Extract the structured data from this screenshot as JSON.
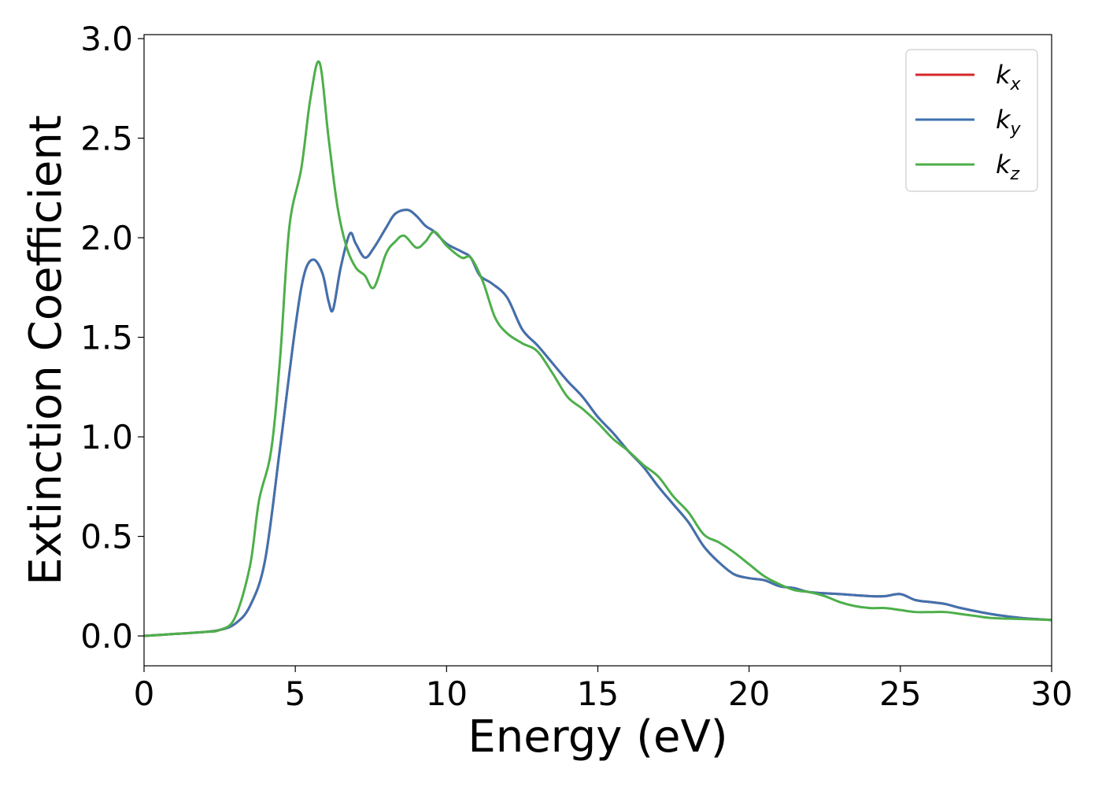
{
  "chart_data": {
    "type": "line",
    "xlabel": "Energy (eV)",
    "ylabel": "Extinction Coefficient",
    "xlim": [
      0,
      30
    ],
    "ylim": [
      -0.15,
      3.02
    ],
    "xticks": [
      0,
      5,
      10,
      15,
      20,
      25,
      30
    ],
    "xtick_labels": [
      "0",
      "5",
      "10",
      "15",
      "20",
      "25",
      "30"
    ],
    "yticks": [
      0.0,
      0.5,
      1.0,
      1.5,
      2.0,
      2.5,
      3.0
    ],
    "ytick_labels": [
      "0.0",
      "0.5",
      "1.0",
      "1.5",
      "2.0",
      "2.5",
      "3.0"
    ],
    "grid": false,
    "legend_position": "top-right",
    "series": [
      {
        "name": "k_x",
        "legend_base": "k",
        "legend_sub": "x",
        "color": "#d62728",
        "points": [
          [
            0,
            0
          ],
          [
            1,
            0.01
          ],
          [
            2,
            0.02
          ],
          [
            2.5,
            0.03
          ],
          [
            3,
            0.06
          ],
          [
            3.5,
            0.15
          ],
          [
            4,
            0.38
          ],
          [
            4.5,
            0.95
          ],
          [
            5,
            1.55
          ],
          [
            5.3,
            1.82
          ],
          [
            5.6,
            1.89
          ],
          [
            5.9,
            1.82
          ],
          [
            6.1,
            1.68
          ],
          [
            6.25,
            1.64
          ],
          [
            6.5,
            1.85
          ],
          [
            6.8,
            2.02
          ],
          [
            7,
            1.97
          ],
          [
            7.3,
            1.9
          ],
          [
            7.6,
            1.95
          ],
          [
            8,
            2.05
          ],
          [
            8.3,
            2.12
          ],
          [
            8.7,
            2.14
          ],
          [
            9,
            2.11
          ],
          [
            9.3,
            2.06
          ],
          [
            9.6,
            2.03
          ],
          [
            10,
            1.97
          ],
          [
            10.5,
            1.93
          ],
          [
            10.8,
            1.9
          ],
          [
            11.1,
            1.81
          ],
          [
            11.5,
            1.77
          ],
          [
            12,
            1.7
          ],
          [
            12.5,
            1.54
          ],
          [
            13,
            1.46
          ],
          [
            13.5,
            1.37
          ],
          [
            14,
            1.28
          ],
          [
            14.5,
            1.2
          ],
          [
            15,
            1.1
          ],
          [
            15.5,
            1.02
          ],
          [
            16,
            0.93
          ],
          [
            16.5,
            0.85
          ],
          [
            17,
            0.75
          ],
          [
            17.5,
            0.66
          ],
          [
            18,
            0.57
          ],
          [
            18.5,
            0.45
          ],
          [
            19,
            0.37
          ],
          [
            19.5,
            0.31
          ],
          [
            20,
            0.29
          ],
          [
            20.5,
            0.28
          ],
          [
            21,
            0.25
          ],
          [
            21.5,
            0.24
          ],
          [
            22,
            0.22
          ],
          [
            23,
            0.21
          ],
          [
            24,
            0.2
          ],
          [
            24.5,
            0.2
          ],
          [
            25,
            0.21
          ],
          [
            25.5,
            0.18
          ],
          [
            26,
            0.17
          ],
          [
            26.5,
            0.16
          ],
          [
            27,
            0.14
          ],
          [
            28,
            0.11
          ],
          [
            29,
            0.09
          ],
          [
            30,
            0.08
          ]
        ]
      },
      {
        "name": "k_y",
        "legend_base": "k",
        "legend_sub": "y",
        "color": "#3f72af",
        "points": [
          [
            0,
            0
          ],
          [
            1,
            0.01
          ],
          [
            2,
            0.02
          ],
          [
            2.5,
            0.03
          ],
          [
            3,
            0.06
          ],
          [
            3.5,
            0.15
          ],
          [
            4,
            0.38
          ],
          [
            4.5,
            0.95
          ],
          [
            5,
            1.55
          ],
          [
            5.3,
            1.82
          ],
          [
            5.6,
            1.89
          ],
          [
            5.9,
            1.82
          ],
          [
            6.1,
            1.68
          ],
          [
            6.25,
            1.64
          ],
          [
            6.5,
            1.85
          ],
          [
            6.8,
            2.02
          ],
          [
            7,
            1.97
          ],
          [
            7.3,
            1.9
          ],
          [
            7.6,
            1.95
          ],
          [
            8,
            2.05
          ],
          [
            8.3,
            2.12
          ],
          [
            8.7,
            2.14
          ],
          [
            9,
            2.11
          ],
          [
            9.3,
            2.06
          ],
          [
            9.6,
            2.03
          ],
          [
            10,
            1.97
          ],
          [
            10.5,
            1.93
          ],
          [
            10.8,
            1.9
          ],
          [
            11.1,
            1.81
          ],
          [
            11.5,
            1.77
          ],
          [
            12,
            1.7
          ],
          [
            12.5,
            1.54
          ],
          [
            13,
            1.46
          ],
          [
            13.5,
            1.37
          ],
          [
            14,
            1.28
          ],
          [
            14.5,
            1.2
          ],
          [
            15,
            1.1
          ],
          [
            15.5,
            1.02
          ],
          [
            16,
            0.93
          ],
          [
            16.5,
            0.85
          ],
          [
            17,
            0.75
          ],
          [
            17.5,
            0.66
          ],
          [
            18,
            0.57
          ],
          [
            18.5,
            0.45
          ],
          [
            19,
            0.37
          ],
          [
            19.5,
            0.31
          ],
          [
            20,
            0.29
          ],
          [
            20.5,
            0.28
          ],
          [
            21,
            0.25
          ],
          [
            21.5,
            0.24
          ],
          [
            22,
            0.22
          ],
          [
            23,
            0.21
          ],
          [
            24,
            0.2
          ],
          [
            24.5,
            0.2
          ],
          [
            25,
            0.21
          ],
          [
            25.5,
            0.18
          ],
          [
            26,
            0.17
          ],
          [
            26.5,
            0.16
          ],
          [
            27,
            0.14
          ],
          [
            28,
            0.11
          ],
          [
            29,
            0.09
          ],
          [
            30,
            0.08
          ]
        ]
      },
      {
        "name": "k_z",
        "legend_base": "k",
        "legend_sub": "z",
        "color": "#4daf4a",
        "points": [
          [
            0,
            0
          ],
          [
            1,
            0.01
          ],
          [
            2,
            0.02
          ],
          [
            2.5,
            0.03
          ],
          [
            3,
            0.09
          ],
          [
            3.5,
            0.35
          ],
          [
            3.8,
            0.68
          ],
          [
            4.2,
            0.93
          ],
          [
            4.5,
            1.4
          ],
          [
            4.8,
            2.05
          ],
          [
            5.2,
            2.35
          ],
          [
            5.5,
            2.7
          ],
          [
            5.8,
            2.88
          ],
          [
            6.1,
            2.5
          ],
          [
            6.4,
            2.15
          ],
          [
            6.7,
            1.95
          ],
          [
            7,
            1.85
          ],
          [
            7.3,
            1.81
          ],
          [
            7.6,
            1.75
          ],
          [
            8,
            1.92
          ],
          [
            8.3,
            1.98
          ],
          [
            8.6,
            2.01
          ],
          [
            9,
            1.95
          ],
          [
            9.3,
            1.98
          ],
          [
            9.6,
            2.03
          ],
          [
            10,
            1.96
          ],
          [
            10.5,
            1.9
          ],
          [
            10.8,
            1.9
          ],
          [
            11.2,
            1.78
          ],
          [
            11.6,
            1.6
          ],
          [
            12,
            1.52
          ],
          [
            12.5,
            1.47
          ],
          [
            13,
            1.43
          ],
          [
            13.5,
            1.32
          ],
          [
            14,
            1.2
          ],
          [
            14.5,
            1.14
          ],
          [
            15,
            1.07
          ],
          [
            15.5,
            0.99
          ],
          [
            16,
            0.93
          ],
          [
            16.5,
            0.86
          ],
          [
            17,
            0.8
          ],
          [
            17.5,
            0.7
          ],
          [
            18,
            0.62
          ],
          [
            18.5,
            0.51
          ],
          [
            19,
            0.47
          ],
          [
            19.5,
            0.42
          ],
          [
            20,
            0.36
          ],
          [
            20.5,
            0.3
          ],
          [
            21,
            0.26
          ],
          [
            21.5,
            0.23
          ],
          [
            22,
            0.22
          ],
          [
            22.5,
            0.2
          ],
          [
            23,
            0.17
          ],
          [
            23.5,
            0.15
          ],
          [
            24,
            0.14
          ],
          [
            24.5,
            0.14
          ],
          [
            25,
            0.13
          ],
          [
            25.5,
            0.12
          ],
          [
            26,
            0.12
          ],
          [
            26.5,
            0.12
          ],
          [
            27,
            0.11
          ],
          [
            27.5,
            0.1
          ],
          [
            28,
            0.09
          ],
          [
            29,
            0.085
          ],
          [
            30,
            0.08
          ]
        ]
      }
    ]
  }
}
